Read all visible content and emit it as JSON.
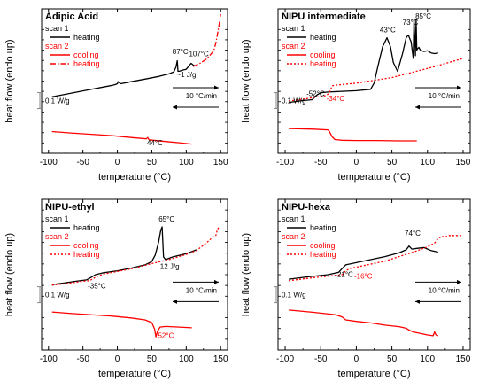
{
  "chart_data": [
    {
      "type": "line",
      "title": "Adipic Acid",
      "xlabel": "temperature (°C)",
      "ylabel": "heat flow (endo up)",
      "xlim": [
        -110,
        160
      ],
      "xticks": [
        -100,
        -50,
        0,
        50,
        100,
        150
      ],
      "xticklabels": [
        "-100",
        "-50",
        "0",
        "50",
        "100",
        "150"
      ],
      "legend": {
        "scan1_label": "scan 1",
        "scan2_label": "scan 2",
        "entries": [
          {
            "key": "s1_heat",
            "label": "heating",
            "color": "#000000",
            "dash": "solid"
          },
          {
            "key": "s2_cool",
            "label": "cooling",
            "color": "#ff0000",
            "dash": "solid"
          },
          {
            "key": "s2_heat",
            "label": "heating",
            "color": "#ff0000",
            "dash": "dashdot"
          }
        ]
      },
      "scale_bar": {
        "label": "0.1 W/g",
        "value": 0.1
      },
      "rate_label": "10 °C/min",
      "series": [
        {
          "key": "s1_heat",
          "name": "heating",
          "color": "#000000",
          "x": [
            -95,
            -80,
            -60,
            -40,
            -20,
            -5,
            0,
            1,
            5,
            20,
            40,
            60,
            75,
            82,
            85,
            87,
            88,
            90,
            96,
            100,
            107,
            112
          ],
          "y": [
            6.6,
            6.9,
            7.3,
            7.7,
            8.1,
            8.4,
            8.6,
            8.9,
            8.6,
            8.9,
            9.3,
            9.7,
            10.1,
            10.4,
            11.1,
            12.1,
            10.5,
            10.5,
            10.7,
            10.8,
            11.7,
            11.3
          ]
        },
        {
          "key": "s2_heat",
          "name": "heating",
          "color": "#ff0000",
          "x": [
            110,
            120,
            130,
            140,
            143,
            146,
            148,
            150
          ],
          "y": [
            11.2,
            11.7,
            12.4,
            13.6,
            14.8,
            16.5,
            17.8,
            19.2
          ]
        },
        {
          "key": "s2_cool",
          "name": "cooling",
          "color": "#ff0000",
          "x": [
            -95,
            -70,
            -40,
            -10,
            20,
            42,
            44,
            46,
            70,
            90,
            108
          ],
          "y": [
            1.3,
            1.1,
            0.9,
            0.7,
            0.4,
            0.2,
            0.4,
            0.05,
            -0.2,
            -0.4,
            -0.6
          ]
        }
      ],
      "annotations": [
        {
          "text": "87°C",
          "x": 80,
          "y": 13.1,
          "color": "#000000"
        },
        {
          "text": "107°C",
          "x": 104,
          "y": 12.8,
          "color": "#000000"
        },
        {
          "text": "~1 J/g",
          "x": 86,
          "y": 9.6,
          "color": "#000000"
        },
        {
          "text": "44°C",
          "x": 43,
          "y": -0.8,
          "color": "#000000"
        }
      ]
    },
    {
      "type": "line",
      "title": "NIPU intermediate",
      "xlabel": "temperature (°C)",
      "ylabel": "heat flow (endo up)",
      "xlim": [
        -110,
        160
      ],
      "xticks": [
        -100,
        -50,
        0,
        50,
        100,
        150
      ],
      "xticklabels": [
        "-100",
        "-50",
        "0",
        "50",
        "100",
        "150"
      ],
      "legend": {
        "scan1_label": "scan 1",
        "scan2_label": "scan 2",
        "entries": [
          {
            "key": "s1_heat",
            "label": "heating",
            "color": "#000000",
            "dash": "solid"
          },
          {
            "key": "s2_cool",
            "label": "cooling",
            "color": "#ff0000",
            "dash": "solid"
          },
          {
            "key": "s2_heat",
            "label": "heating",
            "color": "#ff0000",
            "dash": "dotted"
          }
        ]
      },
      "scale_bar": {
        "label": "0.1 W/g",
        "value": 0.1
      },
      "rate_label": "10 °C/min",
      "series": [
        {
          "key": "s1_heat",
          "name": "heating",
          "color": "#000000",
          "x": [
            -95,
            -80,
            -62,
            -55,
            -50,
            -40,
            -20,
            0,
            20,
            25,
            30,
            37,
            43,
            48,
            52,
            58,
            65,
            70,
            73,
            77,
            80,
            81,
            83,
            84,
            85,
            86,
            88,
            90,
            95,
            100,
            105,
            110,
            115
          ],
          "y": [
            4.4,
            4.6,
            4.8,
            5.5,
            5.8,
            5.9,
            6.0,
            6.1,
            6.3,
            7.2,
            9.5,
            12.5,
            13.8,
            12.5,
            10.2,
            8.9,
            11.5,
            13.8,
            14.2,
            13.2,
            10.8,
            16.5,
            11.2,
            16.5,
            12.0,
            12.2,
            12.4,
            12.0,
            11.8,
            11.9,
            11.6,
            11.5,
            11.6
          ]
        },
        {
          "key": "s2_heat",
          "name": "heating",
          "color": "#ff0000",
          "x": [
            -95,
            -80,
            -60,
            -42,
            -38,
            -34,
            -30,
            -20,
            0,
            25,
            50,
            80,
            110,
            130,
            150
          ],
          "y": [
            4.6,
            4.8,
            5.1,
            5.4,
            5.8,
            6.8,
            6.9,
            7.0,
            7.2,
            7.6,
            8.0,
            8.8,
            9.6,
            10.2,
            10.8
          ]
        },
        {
          "key": "s2_cool",
          "name": "cooling",
          "color": "#ff0000",
          "x": [
            -95,
            -60,
            -40,
            -38,
            -34,
            -30,
            -20,
            0,
            30,
            60,
            85
          ],
          "y": [
            0.6,
            0.5,
            0.4,
            0.2,
            -0.6,
            -1.0,
            -1.1,
            -1.15,
            -1.15,
            -1.2,
            -1.2
          ]
        }
      ],
      "annotations": [
        {
          "text": "-52°C",
          "x": -70,
          "y": 5.3,
          "color": "#000000"
        },
        {
          "text": "-34°C",
          "x": -42,
          "y": 4.6,
          "color": "#ff0000"
        },
        {
          "text": "43°C",
          "x": 33,
          "y": 14.6,
          "color": "#000000"
        },
        {
          "text": "73°C",
          "x": 65,
          "y": 15.7,
          "color": "#000000"
        },
        {
          "text": "85°C",
          "x": 83,
          "y": 16.6,
          "color": "#000000"
        }
      ]
    },
    {
      "type": "line",
      "title": "NIPU-ethyl",
      "xlabel": "temperature (°C)",
      "ylabel": "heat flow (endo up)",
      "xlim": [
        -110,
        160
      ],
      "xticks": [
        -100,
        -50,
        0,
        50,
        100,
        150
      ],
      "xticklabels": [
        "-100",
        "-50",
        "0",
        "50",
        "100",
        "150"
      ],
      "legend": {
        "scan1_label": "scan 1",
        "scan2_label": "scan 2",
        "entries": [
          {
            "key": "s1_heat",
            "label": "heating",
            "color": "#000000",
            "dash": "solid"
          },
          {
            "key": "s2_cool",
            "label": "cooling",
            "color": "#ff0000",
            "dash": "solid"
          },
          {
            "key": "s2_heat",
            "label": "heating",
            "color": "#ff0000",
            "dash": "dotted"
          }
        ]
      },
      "scale_bar": {
        "label": "0.1 W/g",
        "value": 0.1
      },
      "rate_label": "10 °C/min",
      "series": [
        {
          "key": "s1_heat",
          "name": "heating",
          "color": "#000000",
          "x": [
            -95,
            -80,
            -60,
            -45,
            -38,
            -32,
            -20,
            0,
            20,
            40,
            50,
            55,
            60,
            63,
            65,
            67,
            70,
            80,
            100,
            115
          ],
          "y": [
            6.0,
            6.2,
            6.5,
            6.7,
            7.1,
            7.5,
            7.8,
            8.1,
            8.5,
            9.0,
            9.5,
            10.5,
            12.5,
            14.3,
            14.8,
            10.2,
            9.8,
            10.2,
            10.7,
            11.3
          ]
        },
        {
          "key": "s2_heat",
          "name": "heating",
          "color": "#ff0000",
          "x": [
            -95,
            -70,
            -50,
            -40,
            -30,
            -20,
            0,
            25,
            50,
            75,
            100,
            115,
            125,
            132,
            138,
            143,
            145,
            147
          ],
          "y": [
            5.9,
            6.2,
            6.5,
            6.6,
            7.2,
            7.6,
            8.0,
            8.5,
            9.2,
            9.8,
            10.6,
            11.2,
            12.0,
            12.6,
            13.2,
            13.5,
            14.3,
            14.7
          ]
        },
        {
          "key": "s2_cool",
          "name": "cooling",
          "color": "#ff0000",
          "x": [
            -95,
            -70,
            -40,
            -10,
            20,
            40,
            50,
            54,
            56,
            58,
            62,
            70,
            90,
            108
          ],
          "y": [
            1.8,
            1.6,
            1.4,
            1.2,
            0.9,
            0.6,
            0.2,
            -0.8,
            -2.0,
            -1.2,
            -0.5,
            -0.4,
            -0.5,
            -0.6
          ]
        }
      ],
      "annotations": [
        {
          "text": "65°C",
          "x": 60,
          "y": 15.6,
          "color": "#000000"
        },
        {
          "text": "12 J/g",
          "x": 62,
          "y": 8.4,
          "color": "#000000"
        },
        {
          "text": "-35°C",
          "x": -43,
          "y": 5.4,
          "color": "#000000"
        },
        {
          "text": "52°C",
          "x": 59,
          "y": -2.2,
          "color": "#ff0000"
        }
      ]
    },
    {
      "type": "line",
      "title": "NIPU-hexa",
      "xlabel": "temperature (°C)",
      "ylabel": "heat flow (endo up)",
      "xlim": [
        -110,
        160
      ],
      "xticks": [
        -100,
        -50,
        0,
        50,
        100,
        150
      ],
      "xticklabels": [
        "-100",
        "-50",
        "0",
        "50",
        "100",
        "150"
      ],
      "legend": {
        "scan1_label": "scan 1",
        "scan2_label": "scan 2",
        "entries": [
          {
            "key": "s1_heat",
            "label": "heating",
            "color": "#000000",
            "dash": "solid"
          },
          {
            "key": "s2_cool",
            "label": "cooling",
            "color": "#ff0000",
            "dash": "solid"
          },
          {
            "key": "s2_heat",
            "label": "heating",
            "color": "#ff0000",
            "dash": "dotted"
          }
        ]
      },
      "scale_bar": {
        "label": "0.1 W/g",
        "value": 0.1
      },
      "rate_label": "10 °C/min",
      "series": [
        {
          "key": "s1_heat",
          "name": "heating",
          "color": "#000000",
          "x": [
            -95,
            -70,
            -40,
            -25,
            -20,
            -15,
            0,
            20,
            40,
            60,
            70,
            74,
            78,
            85,
            95,
            105,
            115
          ],
          "y": [
            6.4,
            6.7,
            7.0,
            7.3,
            7.8,
            8.3,
            8.6,
            9.0,
            9.4,
            9.9,
            10.3,
            10.8,
            10.4,
            10.5,
            10.6,
            10.2,
            10.0
          ]
        },
        {
          "key": "s2_heat",
          "name": "heating",
          "color": "#ff0000",
          "x": [
            -95,
            -70,
            -40,
            -20,
            -16,
            -10,
            0,
            20,
            40,
            60,
            80,
            100,
            110,
            115,
            120,
            125,
            130,
            140,
            148
          ],
          "y": [
            6.2,
            6.5,
            6.8,
            7.0,
            7.4,
            7.8,
            8.0,
            8.4,
            8.8,
            9.4,
            10.0,
            10.7,
            11.2,
            11.8,
            12.1,
            12.0,
            12.2,
            12.2,
            12.2
          ]
        },
        {
          "key": "s2_cool",
          "name": "cooling",
          "color": "#ff0000",
          "x": [
            -95,
            -60,
            -30,
            -20,
            -15,
            0,
            20,
            40,
            60,
            70,
            75,
            80,
            90,
            100,
            108,
            110,
            112,
            115
          ],
          "y": [
            2.3,
            2.0,
            1.7,
            1.4,
            1.0,
            0.8,
            0.6,
            0.3,
            0.1,
            -0.1,
            -0.4,
            -0.6,
            -0.8,
            -1.0,
            -1.1,
            -0.6,
            -1.0,
            -1.1
          ]
        }
      ],
      "annotations": [
        {
          "text": "74°C",
          "x": 68,
          "y": 12.2,
          "color": "#000000"
        },
        {
          "text": "-21°C",
          "x": -30,
          "y": 6.7,
          "color": "#000000"
        },
        {
          "text": "-16°C",
          "x": -3,
          "y": 6.5,
          "color": "#ff0000"
        }
      ]
    }
  ]
}
